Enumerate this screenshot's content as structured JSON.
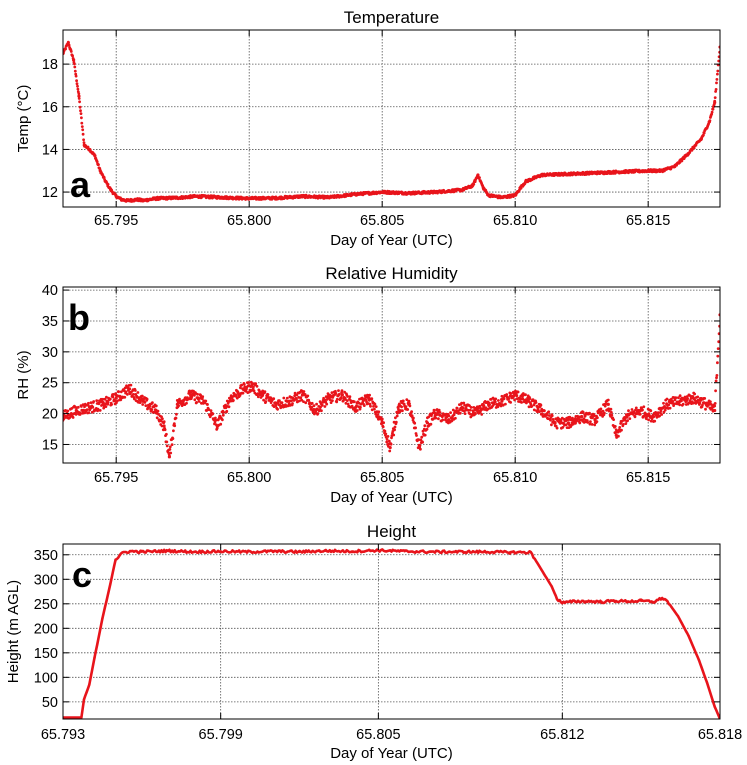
{
  "colors": {
    "series": "#e8141b",
    "grid": "#555555",
    "frame": "#000000"
  },
  "chart_data": [
    {
      "type": "scatter",
      "panel_letter": "a",
      "title": "Temperature",
      "xlabel": "Day of Year (UTC)",
      "ylabel": "Temp (°C)",
      "xlim": [
        65.793,
        65.8177
      ],
      "ylim": [
        11.3,
        19.6
      ],
      "x_ticks": [
        65.795,
        65.8,
        65.805,
        65.81,
        65.815
      ],
      "x_tick_labels": [
        "65.795",
        "65.800",
        "65.805",
        "65.810",
        "65.815"
      ],
      "y_ticks": [
        12,
        14,
        16,
        18
      ],
      "y_tick_labels": [
        "12",
        "14",
        "16",
        "18"
      ],
      "grid": true,
      "series": [
        {
          "x": [
            65.793,
            65.7932,
            65.7934,
            65.7936,
            65.7938,
            65.794,
            65.7942,
            65.7944,
            65.7946,
            65.7948,
            65.795,
            65.7952,
            65.7954,
            65.7956,
            65.7958,
            65.796,
            65.7965,
            65.797,
            65.7975,
            65.798,
            65.799,
            65.8,
            65.801,
            65.802,
            65.803,
            65.804,
            65.805,
            65.806,
            65.807,
            65.808,
            65.8084,
            65.8086,
            65.8088,
            65.809,
            65.8095,
            65.81,
            65.8102,
            65.8104,
            65.811,
            65.812,
            65.813,
            65.814,
            65.815,
            65.8155,
            65.816,
            65.8165,
            65.817,
            65.8173,
            65.8175,
            65.8177
          ],
          "y": [
            18.5,
            19.0,
            18.2,
            16.5,
            14.2,
            14.0,
            13.7,
            13.0,
            12.5,
            12.1,
            11.8,
            11.65,
            11.6,
            11.62,
            11.65,
            11.6,
            11.7,
            11.72,
            11.75,
            11.8,
            11.75,
            11.7,
            11.72,
            11.8,
            11.75,
            11.9,
            12.0,
            11.95,
            12.0,
            12.1,
            12.3,
            12.8,
            12.2,
            11.85,
            11.75,
            11.85,
            12.2,
            12.5,
            12.8,
            12.85,
            12.9,
            12.95,
            13.0,
            13.0,
            13.2,
            13.8,
            14.5,
            15.3,
            16.2,
            18.8
          ]
        }
      ]
    },
    {
      "type": "scatter",
      "panel_letter": "b",
      "title": "Relative Humidity",
      "xlabel": "Day of Year (UTC)",
      "ylabel": "RH (%)",
      "xlim": [
        65.793,
        65.8177
      ],
      "ylim": [
        12,
        40.5
      ],
      "x_ticks": [
        65.795,
        65.8,
        65.805,
        65.81,
        65.815
      ],
      "x_tick_labels": [
        "65.795",
        "65.800",
        "65.805",
        "65.810",
        "65.815"
      ],
      "y_ticks": [
        15,
        20,
        25,
        30,
        35,
        40
      ],
      "y_tick_labels": [
        "15",
        "20",
        "25",
        "30",
        "35",
        "40"
      ],
      "grid": true,
      "series": [
        {
          "x": [
            65.793,
            65.7935,
            65.794,
            65.7945,
            65.795,
            65.7955,
            65.796,
            65.7965,
            65.7968,
            65.797,
            65.7973,
            65.7978,
            65.7983,
            65.7988,
            65.7993,
            65.7998,
            65.8001,
            65.8005,
            65.801,
            65.8015,
            65.802,
            65.8025,
            65.803,
            65.8035,
            65.804,
            65.8045,
            65.805,
            65.8053,
            65.8056,
            65.806,
            65.8064,
            65.8067,
            65.807,
            65.8075,
            65.808,
            65.8085,
            65.809,
            65.8095,
            65.81,
            65.8105,
            65.811,
            65.8115,
            65.812,
            65.8125,
            65.813,
            65.8135,
            65.8138,
            65.8142,
            65.8147,
            65.8152,
            65.8157,
            65.8162,
            65.8167,
            65.8172,
            65.8175,
            65.8177
          ],
          "y": [
            19.5,
            20.5,
            21.0,
            21.5,
            22.5,
            24.0,
            22.0,
            20.5,
            18.0,
            13.0,
            21.5,
            23.0,
            22.0,
            18.0,
            22.5,
            24.0,
            24.5,
            23.0,
            21.5,
            22.0,
            23.0,
            20.5,
            22.5,
            23.0,
            21.0,
            22.5,
            18.5,
            14.5,
            21.0,
            21.5,
            14.5,
            18.5,
            20.0,
            19.0,
            21.0,
            20.0,
            21.5,
            22.0,
            23.0,
            22.0,
            20.5,
            18.5,
            18.5,
            19.5,
            19.0,
            21.5,
            16.5,
            19.5,
            20.5,
            19.5,
            21.5,
            22.0,
            22.5,
            21.5,
            20.5,
            36.0
          ]
        }
      ]
    },
    {
      "type": "line",
      "panel_letter": "c",
      "title": "Height",
      "xlabel": "Day of Year (UTC)",
      "ylabel": "Height (m AGL)",
      "xlim": [
        65.793,
        65.818
      ],
      "ylim": [
        15,
        372
      ],
      "x_ticks": [
        65.793,
        65.799,
        65.805,
        65.812,
        65.818
      ],
      "x_tick_labels": [
        "65.793",
        "65.799",
        "65.805",
        "65.812",
        "65.818"
      ],
      "y_ticks": [
        50,
        100,
        150,
        200,
        250,
        300,
        350
      ],
      "y_tick_labels": [
        "50",
        "100",
        "150",
        "200",
        "250",
        "300",
        "350"
      ],
      "grid": true,
      "series": [
        {
          "x": [
            65.793,
            65.7937,
            65.7938,
            65.794,
            65.7942,
            65.7945,
            65.7948,
            65.795,
            65.7953,
            65.7956,
            65.796,
            65.797,
            65.798,
            65.799,
            65.8,
            65.801,
            65.802,
            65.803,
            65.804,
            65.805,
            65.806,
            65.807,
            65.808,
            65.809,
            65.81,
            65.8108,
            65.8112,
            65.8116,
            65.8118,
            65.812,
            65.8125,
            65.813,
            65.8135,
            65.814,
            65.8145,
            65.815,
            65.8155,
            65.8158,
            65.816,
            65.8164,
            65.8168,
            65.8172,
            65.8175,
            65.8178,
            65.818
          ],
          "y": [
            18,
            18,
            55,
            85,
            140,
            220,
            290,
            340,
            355,
            357,
            356,
            358,
            356,
            357,
            356,
            357,
            356,
            358,
            357,
            359,
            357,
            356,
            356,
            356,
            355,
            355,
            320,
            285,
            260,
            252,
            255,
            255,
            254,
            256,
            255,
            256,
            254,
            262,
            255,
            225,
            185,
            135,
            90,
            40,
            15
          ]
        }
      ]
    }
  ]
}
